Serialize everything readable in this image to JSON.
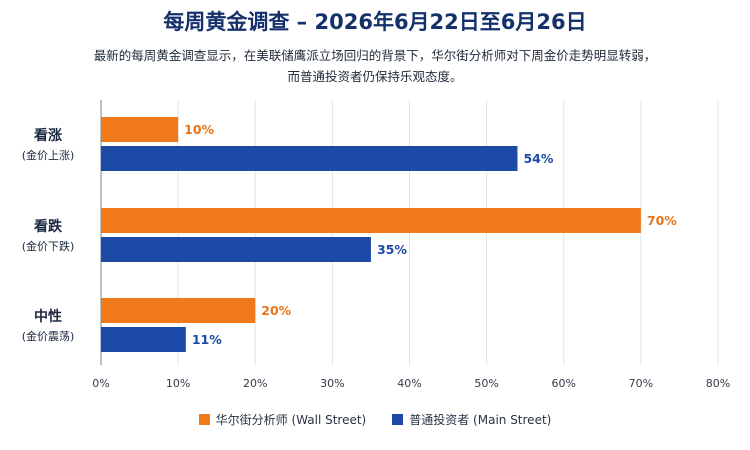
{
  "chart_data": {
    "type": "bar",
    "orientation": "horizontal",
    "title": "每周黄金调查 – 2026年6月22日至6月26日",
    "subtitle_lines": [
      "最新的每周黄金调查显示，在美联储鹰派立场回归的背景下，华尔街分析师对下周金价走势明显转弱，",
      "而普通投资者仍保持乐观态度。"
    ],
    "categories": [
      {
        "label": "看涨",
        "sub": "(金价上涨)"
      },
      {
        "label": "看跌",
        "sub": "(金价下跌)"
      },
      {
        "label": "中性",
        "sub": "(金价震荡)"
      }
    ],
    "series": [
      {
        "name": "华尔街分析师 (Wall Street)",
        "color": "#f07a1a",
        "label_color": "#e8751a",
        "values": [
          10,
          70,
          20
        ]
      },
      {
        "name": "普通投资者 (Main Street)",
        "color": "#1c4aa6",
        "label_color": "#1c4aa6",
        "values": [
          54,
          35,
          11
        ]
      }
    ],
    "value_suffix": "%",
    "xlim": [
      0,
      80
    ],
    "xticks": [
      "0%",
      "10%",
      "20%",
      "30%",
      "40%",
      "50%",
      "60%",
      "70%",
      "80%"
    ],
    "grid": true,
    "legend_position": "bottom"
  }
}
